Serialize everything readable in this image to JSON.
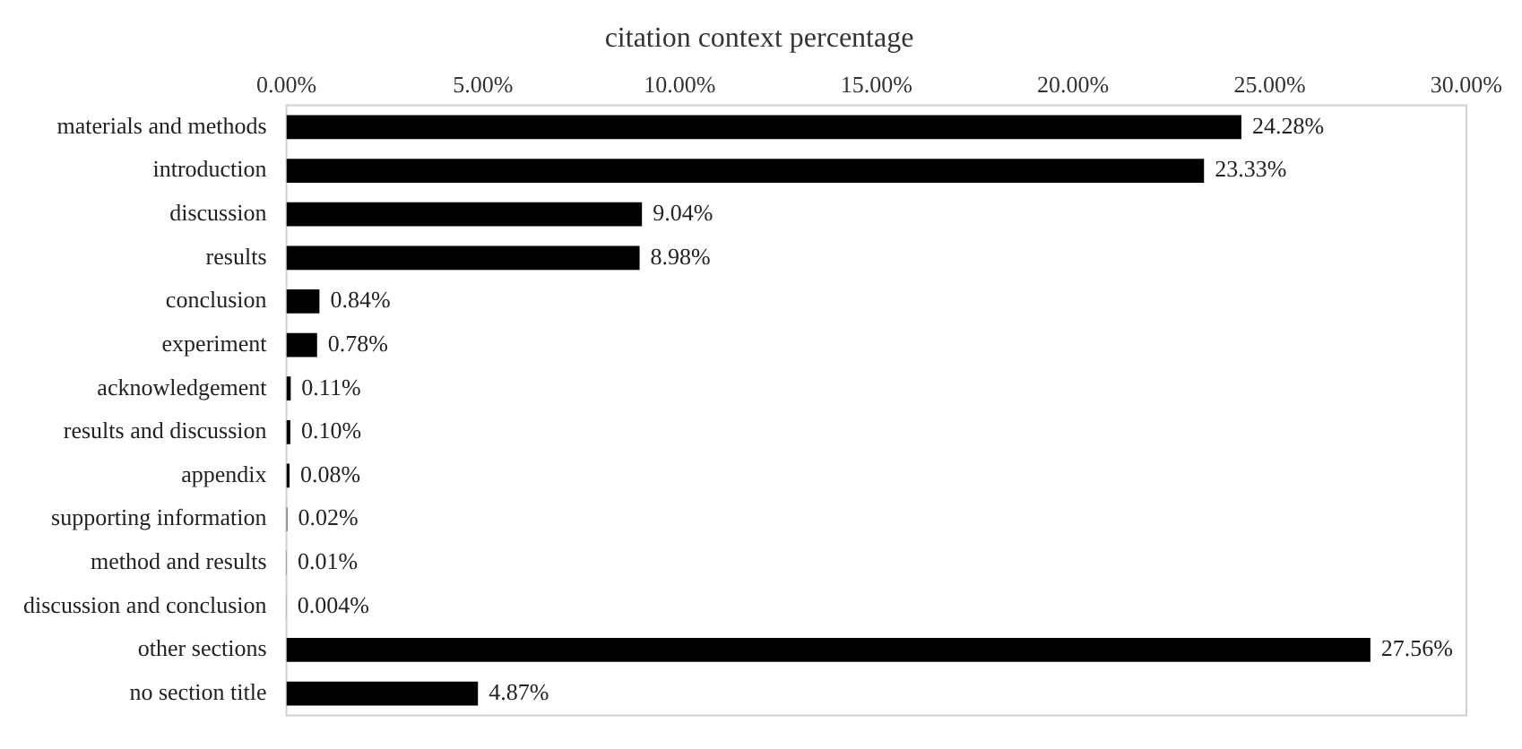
{
  "chart_data": {
    "type": "bar",
    "orientation": "horizontal",
    "title": "citation context percentage",
    "categories": [
      "materials and methods",
      "introduction",
      "discussion",
      "results",
      "conclusion",
      "experiment",
      "acknowledgement",
      "results and discussion",
      "appendix",
      "supporting information",
      "method and results",
      "discussion and conclusion",
      "other sections",
      "no section title"
    ],
    "values": [
      24.28,
      23.33,
      9.04,
      8.98,
      0.84,
      0.78,
      0.11,
      0.1,
      0.08,
      0.02,
      0.01,
      0.004,
      27.56,
      4.87
    ],
    "value_labels": [
      "24.28%",
      "23.33%",
      "9.04%",
      "8.98%",
      "0.84%",
      "0.78%",
      "0.11%",
      "0.10%",
      "0.08%",
      "0.02%",
      "0.01%",
      "0.004%",
      "27.56%",
      "4.87%"
    ],
    "color": "#000000",
    "xlim": [
      0,
      30
    ],
    "xticks": [
      {
        "value": 0,
        "label": "0.00%"
      },
      {
        "value": 5,
        "label": "5.00%"
      },
      {
        "value": 10,
        "label": "10.00%"
      },
      {
        "value": 15,
        "label": "15.00%"
      },
      {
        "value": 20,
        "label": "20.00%"
      },
      {
        "value": 25,
        "label": "25.00%"
      },
      {
        "value": 30,
        "label": "30.00%"
      }
    ],
    "grid": false,
    "legend": false
  }
}
